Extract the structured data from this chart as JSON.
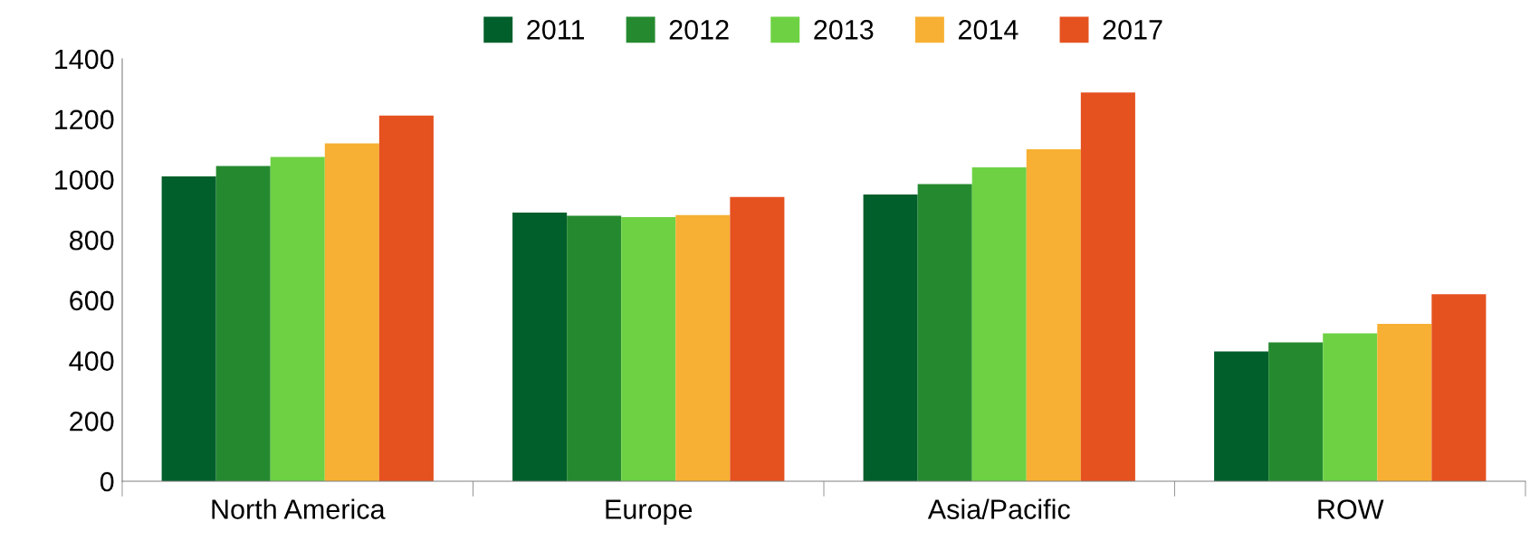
{
  "chart_data": {
    "type": "bar",
    "categories": [
      "North America",
      "Europe",
      "Asia/Pacific",
      "ROW"
    ],
    "series": [
      {
        "name": "2011",
        "color": "#005f2b",
        "values": [
          1010,
          890,
          950,
          430
        ]
      },
      {
        "name": "2012",
        "color": "#258a2f",
        "values": [
          1045,
          880,
          985,
          460
        ]
      },
      {
        "name": "2013",
        "color": "#6dd143",
        "values": [
          1075,
          875,
          1040,
          490
        ]
      },
      {
        "name": "2014",
        "color": "#f7b033",
        "values": [
          1120,
          882,
          1100,
          522
        ]
      },
      {
        "name": "2017",
        "color": "#e5511f",
        "values": [
          1212,
          942,
          1288,
          620
        ]
      }
    ],
    "ylim": [
      0,
      1400
    ],
    "yticks": [
      0,
      200,
      400,
      600,
      800,
      1000,
      1200,
      1400
    ],
    "grid": false,
    "legend": "top"
  }
}
